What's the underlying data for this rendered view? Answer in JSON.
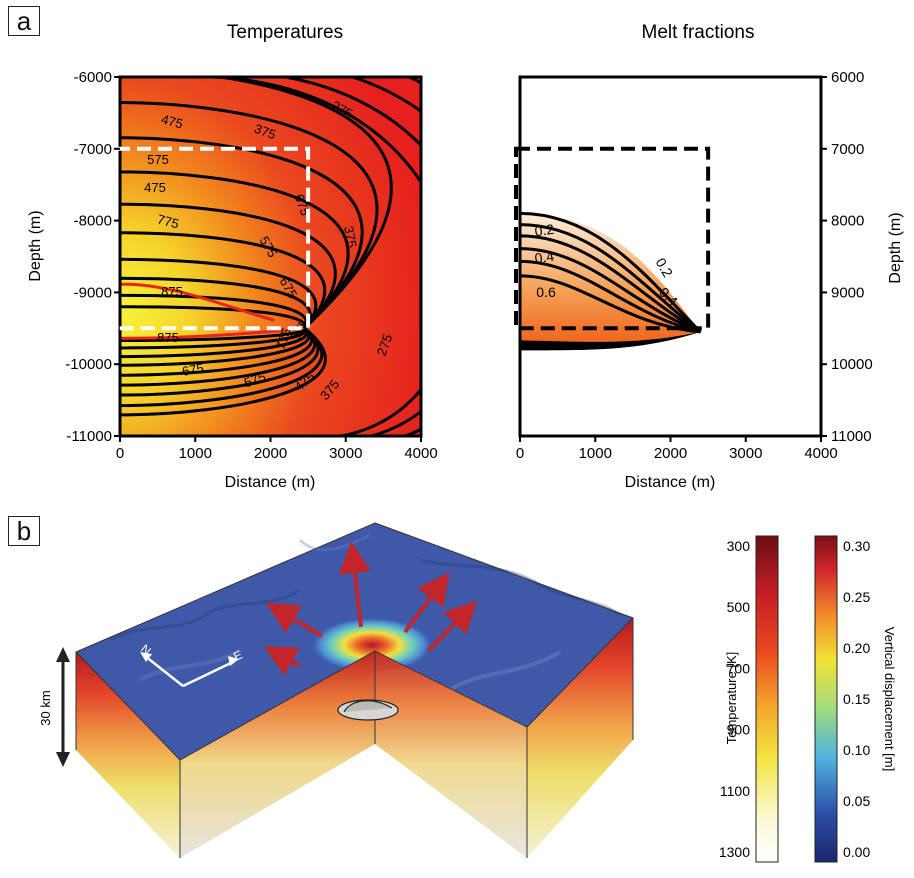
{
  "panels": {
    "a": "a",
    "b": "b"
  },
  "chart_data": [
    {
      "type": "contour",
      "title": "Temperatures",
      "xlabel": "Distance (m)",
      "ylabel": "Depth (m)",
      "xlim": [
        0,
        4000
      ],
      "ylim": [
        -11000,
        -6000
      ],
      "xticks": [
        "0",
        "1000",
        "2000",
        "3000",
        "4000"
      ],
      "yticks": [
        "-6000",
        "-7000",
        "-8000",
        "-9000",
        "-10000",
        "-11000"
      ],
      "contour_labels": [
        "475",
        "375",
        "275",
        "575",
        "675",
        "475",
        "775",
        "575",
        "375",
        "675",
        "875",
        "575",
        "875",
        "775",
        "675",
        "575",
        "475",
        "375",
        "275"
      ],
      "contour_levels": [
        275,
        375,
        475,
        575,
        675,
        775,
        875
      ],
      "colors": {
        "hot": "#f5f02a",
        "mid": "#f28a1e",
        "cold": "#e8241f",
        "highlight_contour": "#e8241f"
      },
      "source_box": {
        "x": [
          0,
          2500
        ],
        "depth": [
          -9500,
          -7000
        ],
        "style": "white dashed"
      },
      "grid": false
    },
    {
      "type": "contour",
      "title": "Melt fractions",
      "xlabel": "Distance (m)",
      "ylabel": "Depth (m)",
      "xlim": [
        0,
        4000
      ],
      "ylim": [
        -11000,
        -6000
      ],
      "xticks": [
        "0",
        "1000",
        "2000",
        "3000",
        "4000"
      ],
      "yticks": [
        "6000",
        "7000",
        "8000",
        "9000",
        "10000",
        "11000"
      ],
      "contour_labels": [
        "0.2",
        "0.4",
        "0.6",
        "0.2",
        "0.4"
      ],
      "contour_levels": [
        0.2,
        0.4,
        0.6
      ],
      "colors": {
        "low": "#fde7cf",
        "high": "#f0661a"
      },
      "source_box": {
        "x": [
          0,
          2500
        ],
        "depth": [
          -9500,
          -7000
        ],
        "style": "black dashed"
      },
      "grid": false
    },
    {
      "type": "colorbar",
      "ylabel": "Temperature [K]",
      "ticks": [
        "300",
        "500",
        "700",
        "900",
        "1100",
        "1300"
      ],
      "range": [
        250,
        1330
      ],
      "colors": [
        "#7a0f14",
        "#c61f26",
        "#e8491f",
        "#f2a02a",
        "#f3e23e",
        "#fbf9d8",
        "#ffffff"
      ]
    },
    {
      "type": "colorbar",
      "ylabel": "Vertical displacement [m]",
      "ticks": [
        "0.00",
        "0.05",
        "0.10",
        "0.15",
        "0.20",
        "0.25",
        "0.30"
      ],
      "range": [
        0.0,
        0.3
      ],
      "colors": [
        "#1d2a7c",
        "#2d5cb0",
        "#56b7de",
        "#a9de77",
        "#f0e337",
        "#f2882a",
        "#d1262b",
        "#7a1216"
      ]
    }
  ],
  "block_diagram": {
    "scale_label": "30 km",
    "compass": {
      "north": "N",
      "east": "E"
    }
  }
}
